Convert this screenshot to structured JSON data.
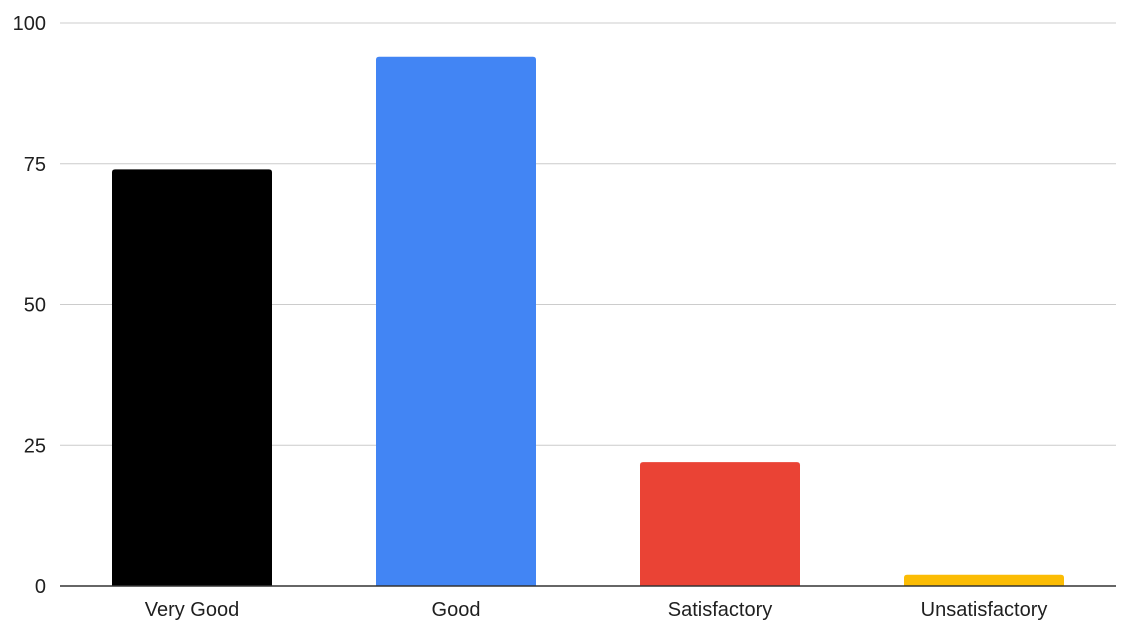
{
  "chart_data": {
    "type": "bar",
    "title": "",
    "xlabel": "",
    "ylabel": "",
    "categories": [
      "Very Good",
      "Good",
      "Satisfactory",
      "Unsatisfactory"
    ],
    "values": [
      74,
      94,
      22,
      2
    ],
    "colors": [
      "#000000",
      "#4285f4",
      "#ea4335",
      "#fbbc04"
    ],
    "ylim": [
      0,
      100
    ],
    "yticks": [
      "0",
      "25",
      "50",
      "75",
      "100"
    ],
    "grid": true,
    "legend": "none"
  }
}
